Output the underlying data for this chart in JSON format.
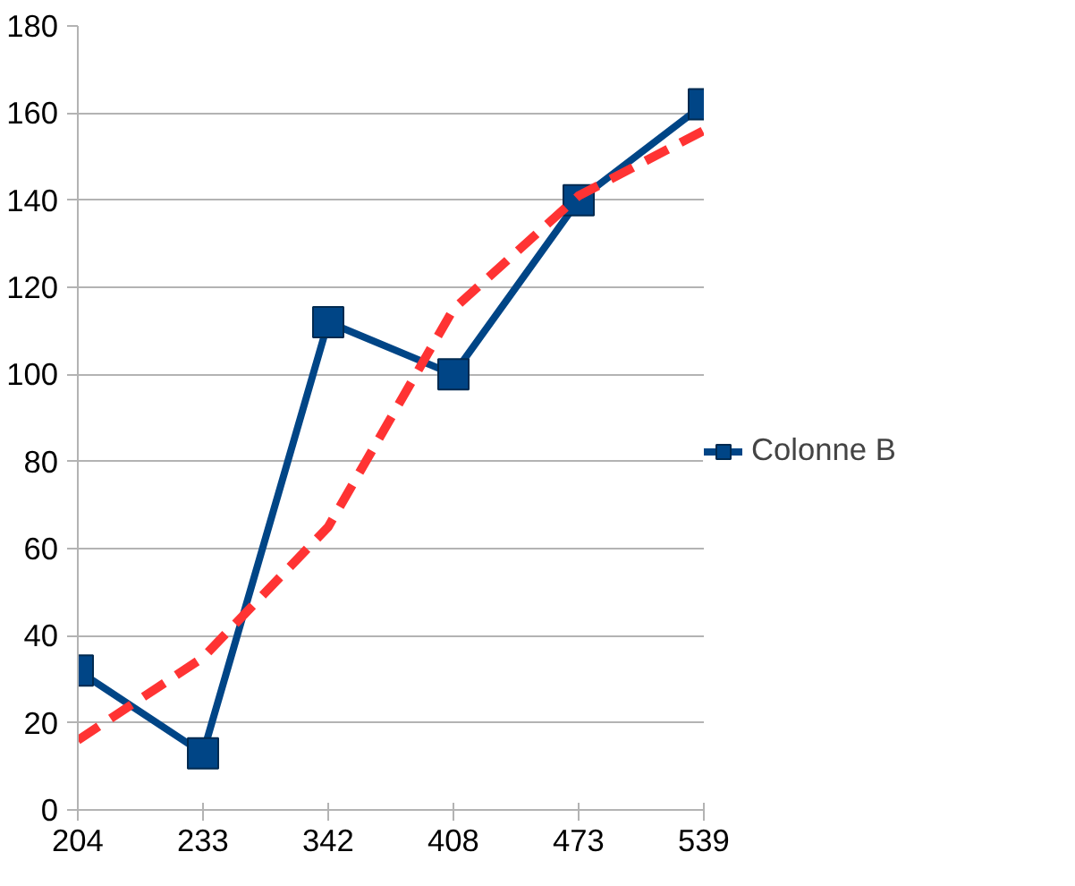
{
  "chart_data": {
    "type": "line",
    "categories": [
      "204",
      "233",
      "342",
      "408",
      "473",
      "539"
    ],
    "series": [
      {
        "name": "Colonne B",
        "color": "#004586",
        "values": [
          32,
          13,
          112,
          100,
          140,
          162
        ],
        "marker": "square",
        "line_style": "solid"
      },
      {
        "type": "line",
        "color": "#ff3333",
        "values": [
          16,
          35,
          65,
          115,
          141,
          156
        ],
        "marker": "none",
        "line_style": "dashed"
      }
    ],
    "ylim": [
      0,
      180
    ],
    "yticks": [
      0,
      20,
      40,
      60,
      80,
      100,
      120,
      140,
      160,
      180
    ],
    "grid": "y",
    "legend": "right"
  }
}
